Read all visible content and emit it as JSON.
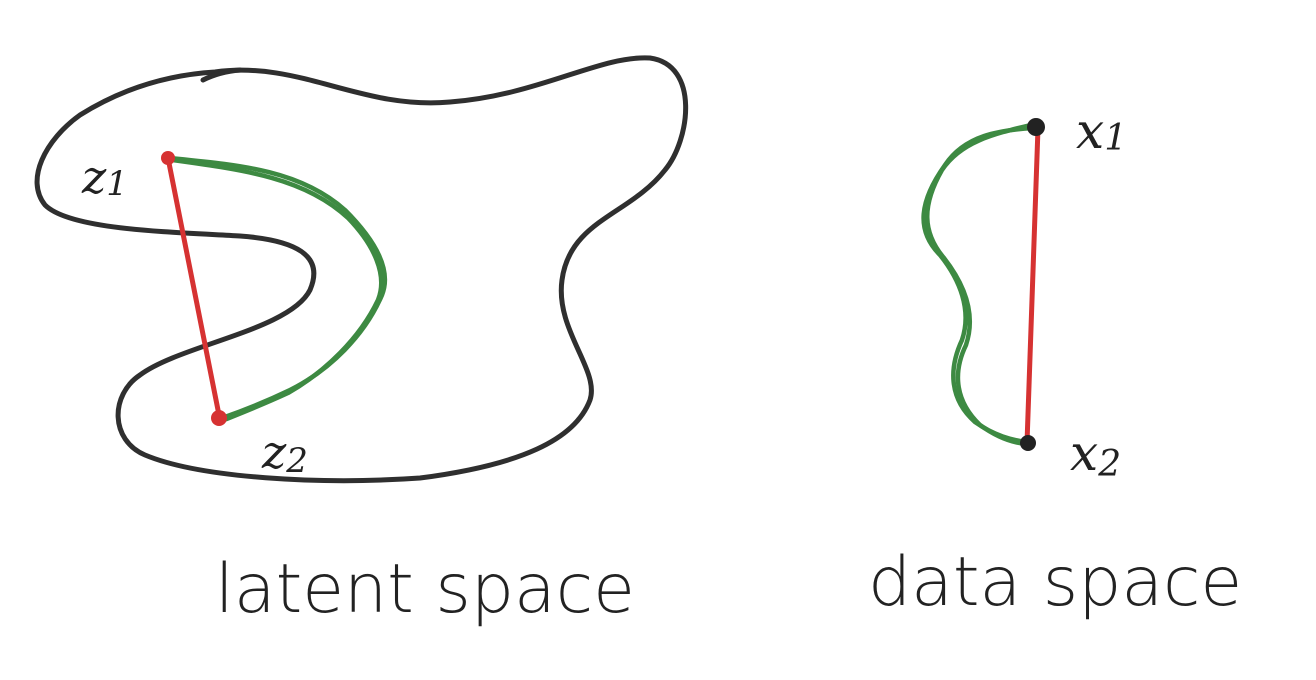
{
  "latent": {
    "caption": "latent space",
    "point_1_label": "z",
    "point_1_sub": "1",
    "point_2_label": "z",
    "point_2_sub": "2"
  },
  "data_space": {
    "caption": "data space",
    "point_1_label": "x",
    "point_1_sub": "1",
    "point_2_label": "x",
    "point_2_sub": "2"
  },
  "colors": {
    "outline": "#2f2f2f",
    "straight_path": "#d63232",
    "curved_path": "#3d8a42"
  }
}
